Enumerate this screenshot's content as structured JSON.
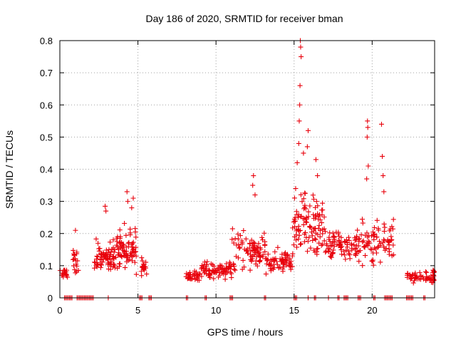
{
  "chart_data": {
    "type": "scatter",
    "title": "Day 186 of 2020, SRMTID for receiver bman",
    "xlabel": "GPS time / hours",
    "ylabel": "SRMTID / TECUs",
    "xlim": [
      0,
      24
    ],
    "ylim": [
      0,
      0.8
    ],
    "grid": true,
    "x_ticks": [
      0,
      5,
      10,
      15,
      20
    ],
    "x_tick_labels": [
      "0",
      "5",
      "10",
      "15",
      "20"
    ],
    "y_ticks": [
      0,
      0.1,
      0.2,
      0.3,
      0.4,
      0.5,
      0.6,
      0.7,
      0.8
    ],
    "y_tick_labels": [
      "0",
      "0.1",
      "0.2",
      "0.3",
      "0.4",
      "0.5",
      "0.6",
      "0.7",
      "0.8"
    ],
    "marker": "+",
    "marker_color": "#e8000b",
    "series": [
      {
        "name": "SRMTID",
        "clusters": [
          {
            "x_start": 0.0,
            "x_end": 0.5,
            "y_base": 0.07,
            "y_spread": 0.03,
            "count": 20
          },
          {
            "x_start": 0.8,
            "x_end": 1.2,
            "y_base": 0.1,
            "y_spread": 0.1,
            "count": 18
          },
          {
            "x_start": 2.2,
            "x_end": 3.6,
            "y_base": 0.11,
            "y_spread": 0.1,
            "count": 75
          },
          {
            "x_start": 3.6,
            "x_end": 4.9,
            "y_base": 0.13,
            "y_spread": 0.14,
            "count": 80
          },
          {
            "x_start": 5.2,
            "x_end": 5.6,
            "y_base": 0.09,
            "y_spread": 0.06,
            "count": 20
          },
          {
            "x_start": 8.0,
            "x_end": 9.0,
            "y_base": 0.06,
            "y_spread": 0.04,
            "count": 35
          },
          {
            "x_start": 9.0,
            "x_end": 11.0,
            "y_base": 0.08,
            "y_spread": 0.06,
            "count": 85
          },
          {
            "x_start": 11.0,
            "x_end": 13.2,
            "y_base": 0.13,
            "y_spread": 0.12,
            "count": 90
          },
          {
            "x_start": 13.2,
            "x_end": 14.9,
            "y_base": 0.1,
            "y_spread": 0.08,
            "count": 70
          },
          {
            "x_start": 14.9,
            "x_end": 17.0,
            "y_base": 0.2,
            "y_spread": 0.2,
            "count": 110
          },
          {
            "x_start": 17.0,
            "x_end": 19.0,
            "y_base": 0.15,
            "y_spread": 0.1,
            "count": 80
          },
          {
            "x_start": 19.0,
            "x_end": 21.4,
            "y_base": 0.15,
            "y_spread": 0.14,
            "count": 90
          },
          {
            "x_start": 22.2,
            "x_end": 24.0,
            "y_base": 0.06,
            "y_spread": 0.04,
            "count": 60
          }
        ],
        "spikes": [
          {
            "x": 1.0,
            "y": 0.21
          },
          {
            "x": 2.9,
            "y": 0.285
          },
          {
            "x": 2.95,
            "y": 0.27
          },
          {
            "x": 4.3,
            "y": 0.33
          },
          {
            "x": 4.35,
            "y": 0.3
          },
          {
            "x": 4.7,
            "y": 0.31
          },
          {
            "x": 4.6,
            "y": 0.28
          },
          {
            "x": 12.4,
            "y": 0.38
          },
          {
            "x": 12.35,
            "y": 0.35
          },
          {
            "x": 12.5,
            "y": 0.32
          },
          {
            "x": 15.1,
            "y": 0.34
          },
          {
            "x": 15.2,
            "y": 0.42
          },
          {
            "x": 15.3,
            "y": 0.48
          },
          {
            "x": 15.4,
            "y": 0.8
          },
          {
            "x": 15.42,
            "y": 0.78
          },
          {
            "x": 15.45,
            "y": 0.75
          },
          {
            "x": 15.38,
            "y": 0.66
          },
          {
            "x": 15.36,
            "y": 0.6
          },
          {
            "x": 15.33,
            "y": 0.55
          },
          {
            "x": 15.6,
            "y": 0.45
          },
          {
            "x": 15.9,
            "y": 0.52
          },
          {
            "x": 15.85,
            "y": 0.47
          },
          {
            "x": 16.4,
            "y": 0.43
          },
          {
            "x": 16.5,
            "y": 0.38
          },
          {
            "x": 19.7,
            "y": 0.55
          },
          {
            "x": 19.72,
            "y": 0.53
          },
          {
            "x": 19.68,
            "y": 0.5
          },
          {
            "x": 19.75,
            "y": 0.41
          },
          {
            "x": 19.65,
            "y": 0.37
          },
          {
            "x": 20.6,
            "y": 0.54
          },
          {
            "x": 20.65,
            "y": 0.44
          },
          {
            "x": 20.7,
            "y": 0.38
          },
          {
            "x": 20.75,
            "y": 0.33
          }
        ],
        "zero_runs": [
          {
            "x_start": 0.3,
            "x_end": 0.8
          },
          {
            "x_start": 1.1,
            "x_end": 2.2
          },
          {
            "x_start": 3.1,
            "x_end": 3.1
          },
          {
            "x_start": 5.1,
            "x_end": 5.3
          },
          {
            "x_start": 5.7,
            "x_end": 5.9
          },
          {
            "x_start": 8.1,
            "x_end": 8.2
          },
          {
            "x_start": 9.3,
            "x_end": 9.4
          },
          {
            "x_start": 10.9,
            "x_end": 11.1
          },
          {
            "x_start": 13.1,
            "x_end": 13.2
          },
          {
            "x_start": 15.0,
            "x_end": 15.2
          },
          {
            "x_start": 15.9,
            "x_end": 15.9
          },
          {
            "x_start": 16.3,
            "x_end": 16.4
          },
          {
            "x_start": 17.2,
            "x_end": 17.2
          },
          {
            "x_start": 17.8,
            "x_end": 17.9
          },
          {
            "x_start": 18.2,
            "x_end": 18.5
          },
          {
            "x_start": 19.1,
            "x_end": 19.3
          },
          {
            "x_start": 20.1,
            "x_end": 20.2
          },
          {
            "x_start": 20.8,
            "x_end": 21.3
          },
          {
            "x_start": 22.2,
            "x_end": 22.6
          },
          {
            "x_start": 23.3,
            "x_end": 23.4
          }
        ]
      }
    ]
  }
}
